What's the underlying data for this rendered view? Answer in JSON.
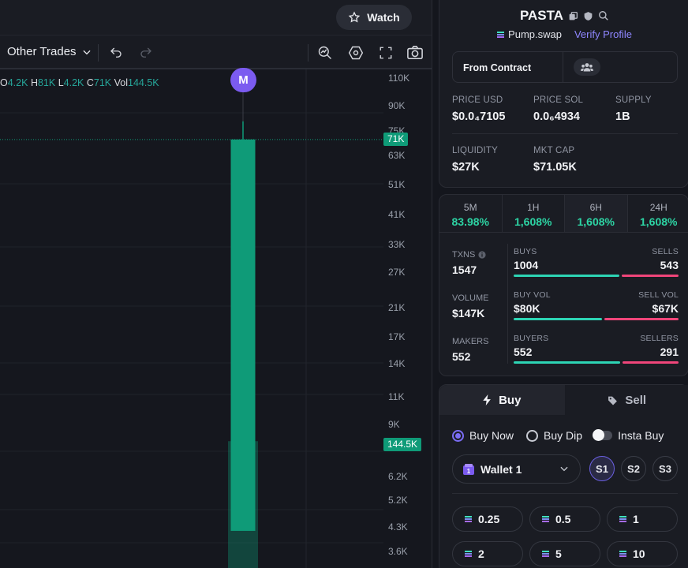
{
  "header": {
    "watch_label": "Watch"
  },
  "toolbar": {
    "trades_dropdown": "Other Trades"
  },
  "chart_data": {
    "type": "candlestick",
    "ohlc": {
      "o_label": "O",
      "o": "4.2K",
      "h_label": "H",
      "h": "81K",
      "l_label": "L",
      "l": "4.2K",
      "c_label": "C",
      "c": "71K",
      "vol_label": "Vol",
      "vol": "144.5K"
    },
    "marker_label": "M",
    "y_ticks": [
      "110K",
      "90K",
      "75K",
      "63K",
      "51K",
      "41K",
      "33K",
      "27K",
      "21K",
      "17K",
      "14K",
      "11K",
      "9K",
      "6.2K",
      "5.2K",
      "4.3K",
      "3.6K"
    ],
    "y_scale": "log",
    "current_price_tag": "71K",
    "volume_tag": "144.5K",
    "candle": {
      "open": 4200,
      "high": 81000,
      "low": 4200,
      "close": 71000,
      "volume": 144500
    }
  },
  "token": {
    "name": "PASTA",
    "source": "Pump.swap",
    "verify_label": "Verify Profile",
    "from_label": "From Contract",
    "stats": [
      {
        "label": "PRICE USD",
        "value": "$0.0₄7105"
      },
      {
        "label": "PRICE SOL",
        "value": "0.0₆4934"
      },
      {
        "label": "SUPPLY",
        "value": "1B"
      },
      {
        "label": "LIQUIDITY",
        "value": "$27K"
      },
      {
        "label": "MKT CAP",
        "value": "$71.05K"
      }
    ]
  },
  "timeframes": [
    {
      "name": "5M",
      "pct": "83.98%"
    },
    {
      "name": "1H",
      "pct": "1,608%"
    },
    {
      "name": "6H",
      "pct": "1,608%"
    },
    {
      "name": "24H",
      "pct": "1,608%"
    }
  ],
  "activity": {
    "txns_label": "TXNS",
    "txns": "1547",
    "volume_label": "VOLUME",
    "volume": "$147K",
    "makers_label": "MAKERS",
    "makers": "552",
    "buys_label": "BUYS",
    "buys": "1004",
    "sells_label": "SELLS",
    "sells": "543",
    "buy_vol_label": "BUY VOL",
    "buy_vol": "$80K",
    "sell_vol_label": "SELL VOL",
    "sell_vol": "$67K",
    "buyers_label": "BUYERS",
    "buyers": "552",
    "sellers_label": "SELLERS",
    "sellers": "291",
    "buy_ratio": 0.649,
    "vol_ratio": 0.544,
    "buyers_ratio": 0.655
  },
  "trade": {
    "buy_tab": "Buy",
    "sell_tab": "Sell",
    "opt_buy_now": "Buy Now",
    "opt_buy_dip": "Buy Dip",
    "opt_insta": "Insta Buy",
    "wallet_badge": "1",
    "wallet": "Wallet 1",
    "slots": [
      "S1",
      "S2",
      "S3"
    ],
    "amounts": [
      "0.25",
      "0.5",
      "1",
      "2",
      "5",
      "10"
    ]
  },
  "colors": {
    "up": "#0f9b78",
    "accent": "#7b5bf0",
    "buy_bar": "#2dd4b4",
    "sell_bar": "#f0457a",
    "pct_green": "#2dd4a4"
  }
}
